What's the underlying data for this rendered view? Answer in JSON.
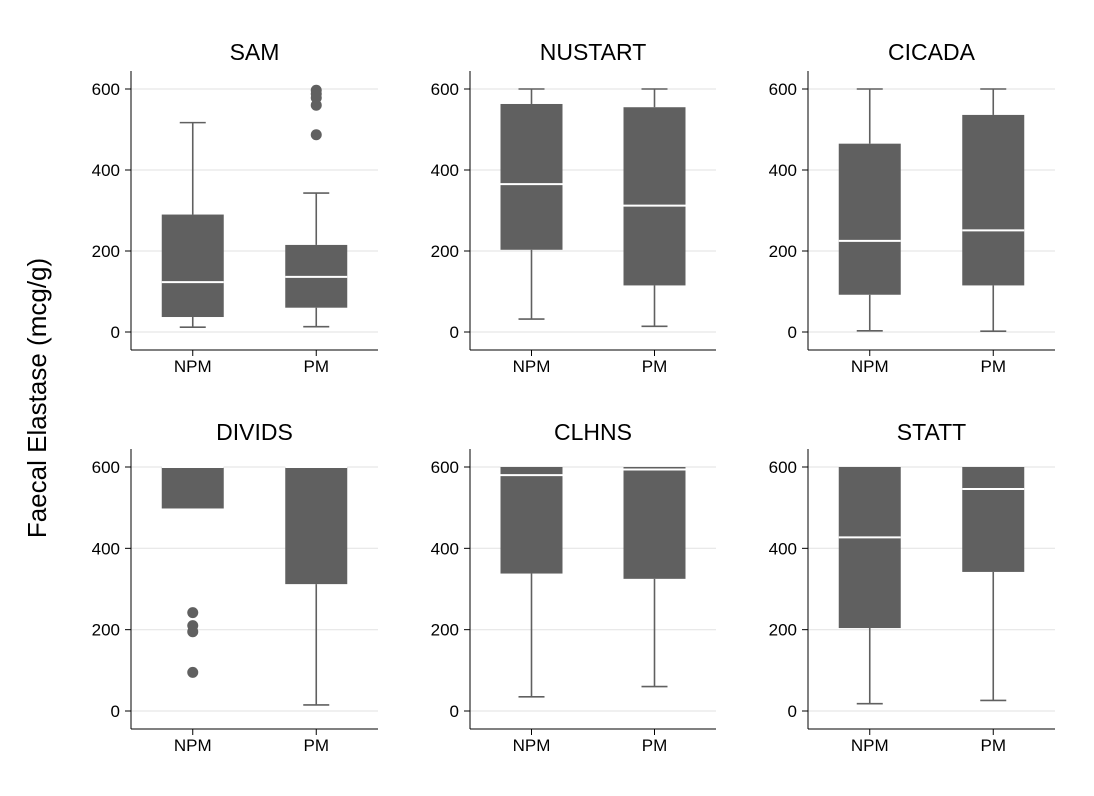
{
  "figure": {
    "ylabel": "Faecal Elastase (mcg/g)",
    "box_color": "#606060",
    "median_color": "#ffffff",
    "grid_color": "#e6e6e6",
    "axis_color": "#000000"
  },
  "chart_data": [
    {
      "type": "box",
      "title": "SAM",
      "categories": [
        "NPM",
        "PM"
      ],
      "ylim": [
        0,
        600
      ],
      "yticks": [
        0,
        200,
        400,
        600
      ],
      "boxes": [
        {
          "category": "NPM",
          "whisker_low": 12,
          "q1": 37,
          "median": 123,
          "q3": 290,
          "whisker_high": 517,
          "outliers": []
        },
        {
          "category": "PM",
          "whisker_low": 13,
          "q1": 60,
          "median": 136,
          "q3": 215,
          "whisker_high": 343,
          "outliers": [
            487,
            560,
            578,
            588,
            597
          ]
        }
      ]
    },
    {
      "type": "box",
      "title": "NUSTART",
      "categories": [
        "NPM",
        "PM"
      ],
      "ylim": [
        0,
        600
      ],
      "yticks": [
        0,
        200,
        400,
        600
      ],
      "boxes": [
        {
          "category": "NPM",
          "whisker_low": 32,
          "q1": 203,
          "median": 365,
          "q3": 563,
          "whisker_high": 600,
          "outliers": []
        },
        {
          "category": "PM",
          "whisker_low": 14,
          "q1": 115,
          "median": 312,
          "q3": 555,
          "whisker_high": 600,
          "outliers": []
        }
      ]
    },
    {
      "type": "box",
      "title": "CICADA",
      "categories": [
        "NPM",
        "PM"
      ],
      "ylim": [
        0,
        600
      ],
      "yticks": [
        0,
        200,
        400,
        600
      ],
      "boxes": [
        {
          "category": "NPM",
          "whisker_low": 3,
          "q1": 92,
          "median": 225,
          "q3": 465,
          "whisker_high": 600,
          "outliers": []
        },
        {
          "category": "PM",
          "whisker_low": 2,
          "q1": 115,
          "median": 251,
          "q3": 536,
          "whisker_high": 600,
          "outliers": []
        }
      ]
    },
    {
      "type": "box",
      "title": "DIVIDS",
      "categories": [
        "NPM",
        "PM"
      ],
      "ylim": [
        0,
        600
      ],
      "yticks": [
        0,
        200,
        400,
        600
      ],
      "boxes": [
        {
          "category": "NPM",
          "whisker_low": 498,
          "q1": 498,
          "median": 600,
          "q3": 600,
          "whisker_high": 600,
          "outliers": [
            95,
            195,
            210,
            242
          ]
        },
        {
          "category": "PM",
          "whisker_low": 15,
          "q1": 312,
          "median": 600,
          "q3": 600,
          "whisker_high": 600,
          "outliers": []
        }
      ]
    },
    {
      "type": "box",
      "title": "CLHNS",
      "categories": [
        "NPM",
        "PM"
      ],
      "ylim": [
        0,
        600
      ],
      "yticks": [
        0,
        200,
        400,
        600
      ],
      "boxes": [
        {
          "category": "NPM",
          "whisker_low": 35,
          "q1": 338,
          "median": 580,
          "q3": 600,
          "whisker_high": 600,
          "outliers": []
        },
        {
          "category": "PM",
          "whisker_low": 60,
          "q1": 325,
          "median": 594,
          "q3": 600,
          "whisker_high": 600,
          "outliers": []
        }
      ]
    },
    {
      "type": "box",
      "title": "STATT",
      "categories": [
        "NPM",
        "PM"
      ],
      "ylim": [
        0,
        600
      ],
      "yticks": [
        0,
        200,
        400,
        600
      ],
      "boxes": [
        {
          "category": "NPM",
          "whisker_low": 18,
          "q1": 204,
          "median": 427,
          "q3": 600,
          "whisker_high": 600,
          "outliers": []
        },
        {
          "category": "PM",
          "whisker_low": 26,
          "q1": 342,
          "median": 546,
          "q3": 600,
          "whisker_high": 600,
          "outliers": []
        }
      ]
    }
  ]
}
